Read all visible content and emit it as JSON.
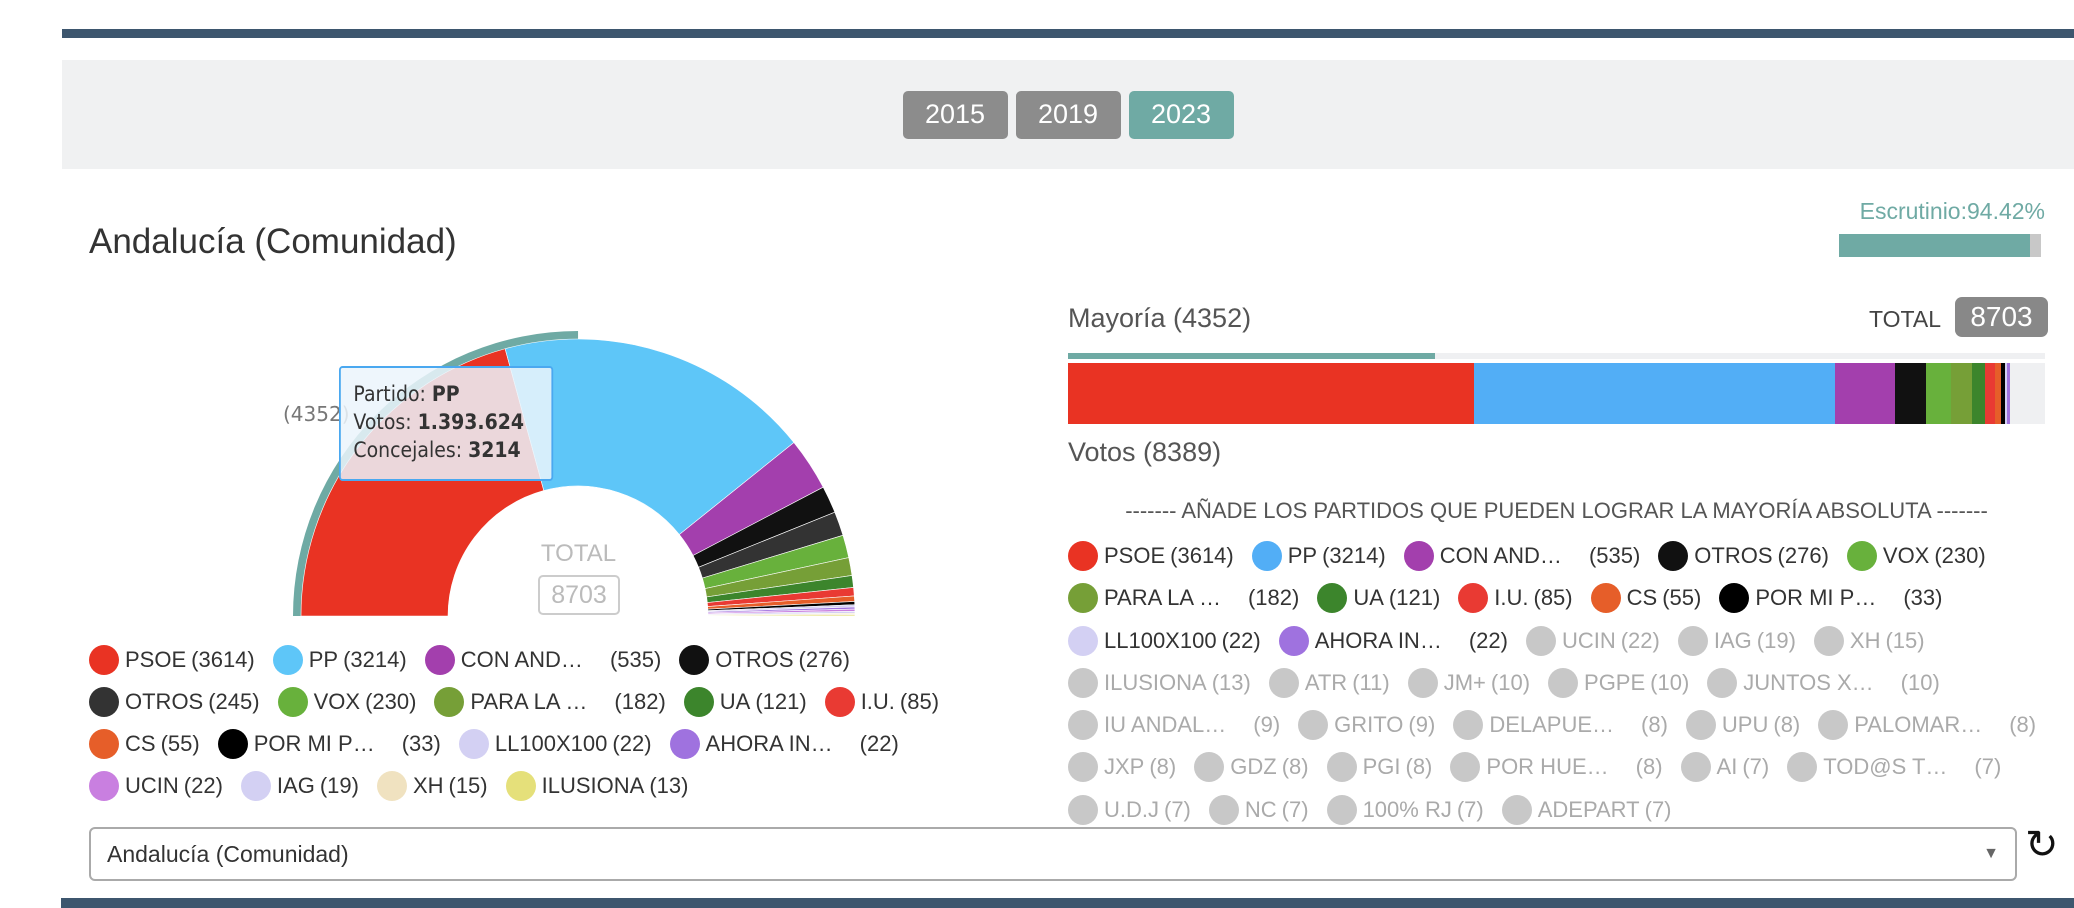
{
  "years": [
    {
      "label": "2015",
      "active": false
    },
    {
      "label": "2019",
      "active": false
    },
    {
      "label": "2023",
      "active": true
    }
  ],
  "title": "Andalucía (Comunidad)",
  "escrutinio": {
    "label": "Escrutinio:94.42%",
    "percent": 94.42
  },
  "mayoria_label": "Mayoría (4352)",
  "mayoria": 4352,
  "total_label": "TOTAL",
  "total": "8703",
  "votos_label": "Votos (8389)",
  "add_heading": "------- AÑADE LOS PARTIDOS QUE PUEDEN LOGRAR LA MAYORÍA ABSOLUTA -------",
  "hemicycle": {
    "total_label": "TOTAL",
    "total_value": "8703",
    "majority_label": "(4352)"
  },
  "tooltip": {
    "partido_label": "Partido: ",
    "partido": "PP",
    "votos_label": "Votos: ",
    "votos": "1.393.624",
    "concejales_label": "Concejales: ",
    "concejales": "3214"
  },
  "left_legend": [
    {
      "name": "PSOE",
      "count": "(3614)",
      "seats": 3614,
      "color": "#e93323",
      "tr": false
    },
    {
      "name": "PP",
      "count": "(3214)",
      "seats": 3214,
      "color": "#5ec6f8",
      "tr": false
    },
    {
      "name": "CON AND…",
      "count": "(535)",
      "seats": 535,
      "color": "#a33fad",
      "tr": true
    },
    {
      "name": "OTROS",
      "count": "(276)",
      "seats": 276,
      "color": "#111111",
      "tr": false
    },
    {
      "name": "OTROS",
      "count": "(245)",
      "seats": 245,
      "color": "#333333",
      "tr": false
    },
    {
      "name": "VOX",
      "count": "(230)",
      "seats": 230,
      "color": "#68b13c",
      "tr": false
    },
    {
      "name": "PARA LA …",
      "count": "(182)",
      "seats": 182,
      "color": "#769f37",
      "tr": true
    },
    {
      "name": "UA",
      "count": "(121)",
      "seats": 121,
      "color": "#3c852c",
      "tr": false
    },
    {
      "name": "I.U.",
      "count": "(85)",
      "seats": 85,
      "color": "#e93a33",
      "tr": false
    },
    {
      "name": "CS",
      "count": "(55)",
      "seats": 55,
      "color": "#e65e29",
      "tr": false
    },
    {
      "name": "POR MI P…",
      "count": "(33)",
      "seats": 33,
      "color": "#000000",
      "tr": true
    },
    {
      "name": "LL100X100",
      "count": "(22)",
      "seats": 22,
      "color": "#d3d0f3",
      "tr": false
    },
    {
      "name": "AHORA IN…",
      "count": "(22)",
      "seats": 22,
      "color": "#9f72df",
      "tr": true
    },
    {
      "name": "UCIN",
      "count": "(22)",
      "seats": 22,
      "color": "#c97fe0",
      "tr": false
    },
    {
      "name": "IAG",
      "count": "(19)",
      "seats": 19,
      "color": "#d3d0f3",
      "tr": false
    },
    {
      "name": "XH",
      "count": "(15)",
      "seats": 15,
      "color": "#f0e2c0",
      "tr": false
    },
    {
      "name": "ILUSIONA",
      "count": "(13)",
      "seats": 13,
      "color": "#e5e07a",
      "tr": false
    }
  ],
  "right_legend": [
    {
      "name": "PSOE",
      "count": "(3614)",
      "seats": 3614,
      "color": "#e93323",
      "active": true,
      "tr": false
    },
    {
      "name": "PP",
      "count": "(3214)",
      "seats": 3214,
      "color": "#52aef6",
      "active": true,
      "tr": false
    },
    {
      "name": "CON AND…",
      "count": "(535)",
      "seats": 535,
      "color": "#a33fad",
      "active": true,
      "tr": true
    },
    {
      "name": "OTROS",
      "count": "(276)",
      "seats": 276,
      "color": "#111111",
      "active": true,
      "tr": false
    },
    {
      "name": "VOX",
      "count": "(230)",
      "seats": 230,
      "color": "#68b13c",
      "active": true,
      "tr": false
    },
    {
      "name": "PARA LA …",
      "count": "(182)",
      "seats": 182,
      "color": "#769f37",
      "active": true,
      "tr": true
    },
    {
      "name": "UA",
      "count": "(121)",
      "seats": 121,
      "color": "#3c852c",
      "active": true,
      "tr": false
    },
    {
      "name": "I.U.",
      "count": "(85)",
      "seats": 85,
      "color": "#e93a33",
      "active": true,
      "tr": false
    },
    {
      "name": "CS",
      "count": "(55)",
      "seats": 55,
      "color": "#e65e29",
      "active": true,
      "tr": false
    },
    {
      "name": "POR MI P…",
      "count": "(33)",
      "seats": 33,
      "color": "#000000",
      "active": true,
      "tr": true
    },
    {
      "name": "LL100X100",
      "count": "(22)",
      "seats": 22,
      "color": "#d3d0f3",
      "active": true,
      "tr": false
    },
    {
      "name": "AHORA IN…",
      "count": "(22)",
      "seats": 22,
      "color": "#9f72df",
      "active": true,
      "tr": true
    },
    {
      "name": "UCIN",
      "count": "(22)",
      "seats": 22,
      "color": "#c8c8c8",
      "active": false,
      "tr": false
    },
    {
      "name": "IAG",
      "count": "(19)",
      "seats": 19,
      "color": "#c8c8c8",
      "active": false,
      "tr": false
    },
    {
      "name": "XH",
      "count": "(15)",
      "seats": 15,
      "color": "#c8c8c8",
      "active": false,
      "tr": false
    },
    {
      "name": "ILUSIONA",
      "count": "(13)",
      "seats": 13,
      "color": "#c8c8c8",
      "active": false,
      "tr": false
    },
    {
      "name": "ATR",
      "count": "(11)",
      "seats": 11,
      "color": "#c8c8c8",
      "active": false,
      "tr": false
    },
    {
      "name": "JM+",
      "count": "(10)",
      "seats": 10,
      "color": "#c8c8c8",
      "active": false,
      "tr": false
    },
    {
      "name": "PGPE",
      "count": "(10)",
      "seats": 10,
      "color": "#c8c8c8",
      "active": false,
      "tr": false
    },
    {
      "name": "JUNTOS X…",
      "count": "(10)",
      "seats": 10,
      "color": "#c8c8c8",
      "active": false,
      "tr": true
    },
    {
      "name": "IU ANDAL…",
      "count": "(9)",
      "seats": 9,
      "color": "#c8c8c8",
      "active": false,
      "tr": true
    },
    {
      "name": "GRITO",
      "count": "(9)",
      "seats": 9,
      "color": "#c8c8c8",
      "active": false,
      "tr": false
    },
    {
      "name": "DELAPUE…",
      "count": "(8)",
      "seats": 8,
      "color": "#c8c8c8",
      "active": false,
      "tr": true
    },
    {
      "name": "UPU",
      "count": "(8)",
      "seats": 8,
      "color": "#c8c8c8",
      "active": false,
      "tr": false
    },
    {
      "name": "PALOMAR…",
      "count": "(8)",
      "seats": 8,
      "color": "#c8c8c8",
      "active": false,
      "tr": true
    },
    {
      "name": "JXP",
      "count": "(8)",
      "seats": 8,
      "color": "#c8c8c8",
      "active": false,
      "tr": false
    },
    {
      "name": "GDZ",
      "count": "(8)",
      "seats": 8,
      "color": "#c8c8c8",
      "active": false,
      "tr": false
    },
    {
      "name": "PGI",
      "count": "(8)",
      "seats": 8,
      "color": "#c8c8c8",
      "active": false,
      "tr": false
    },
    {
      "name": "POR HUE…",
      "count": "(8)",
      "seats": 8,
      "color": "#c8c8c8",
      "active": false,
      "tr": true
    },
    {
      "name": "AI",
      "count": "(7)",
      "seats": 7,
      "color": "#c8c8c8",
      "active": false,
      "tr": false
    },
    {
      "name": "TOD@S T…",
      "count": "(7)",
      "seats": 7,
      "color": "#c8c8c8",
      "active": false,
      "tr": true
    },
    {
      "name": "U.D.J",
      "count": "(7)",
      "seats": 7,
      "color": "#c8c8c8",
      "active": false,
      "tr": false
    },
    {
      "name": "NC",
      "count": "(7)",
      "seats": 7,
      "color": "#c8c8c8",
      "active": false,
      "tr": false
    },
    {
      "name": "100% RJ",
      "count": "(7)",
      "seats": 7,
      "color": "#c8c8c8",
      "active": false,
      "tr": false
    },
    {
      "name": "ADEPART",
      "count": "(7)",
      "seats": 7,
      "color": "#c8c8c8",
      "active": false,
      "tr": false
    }
  ],
  "select": {
    "value": "Andalucía (Comunidad)"
  },
  "colors": {
    "accent": "#6faaa4",
    "dark": "#3d566e"
  }
}
